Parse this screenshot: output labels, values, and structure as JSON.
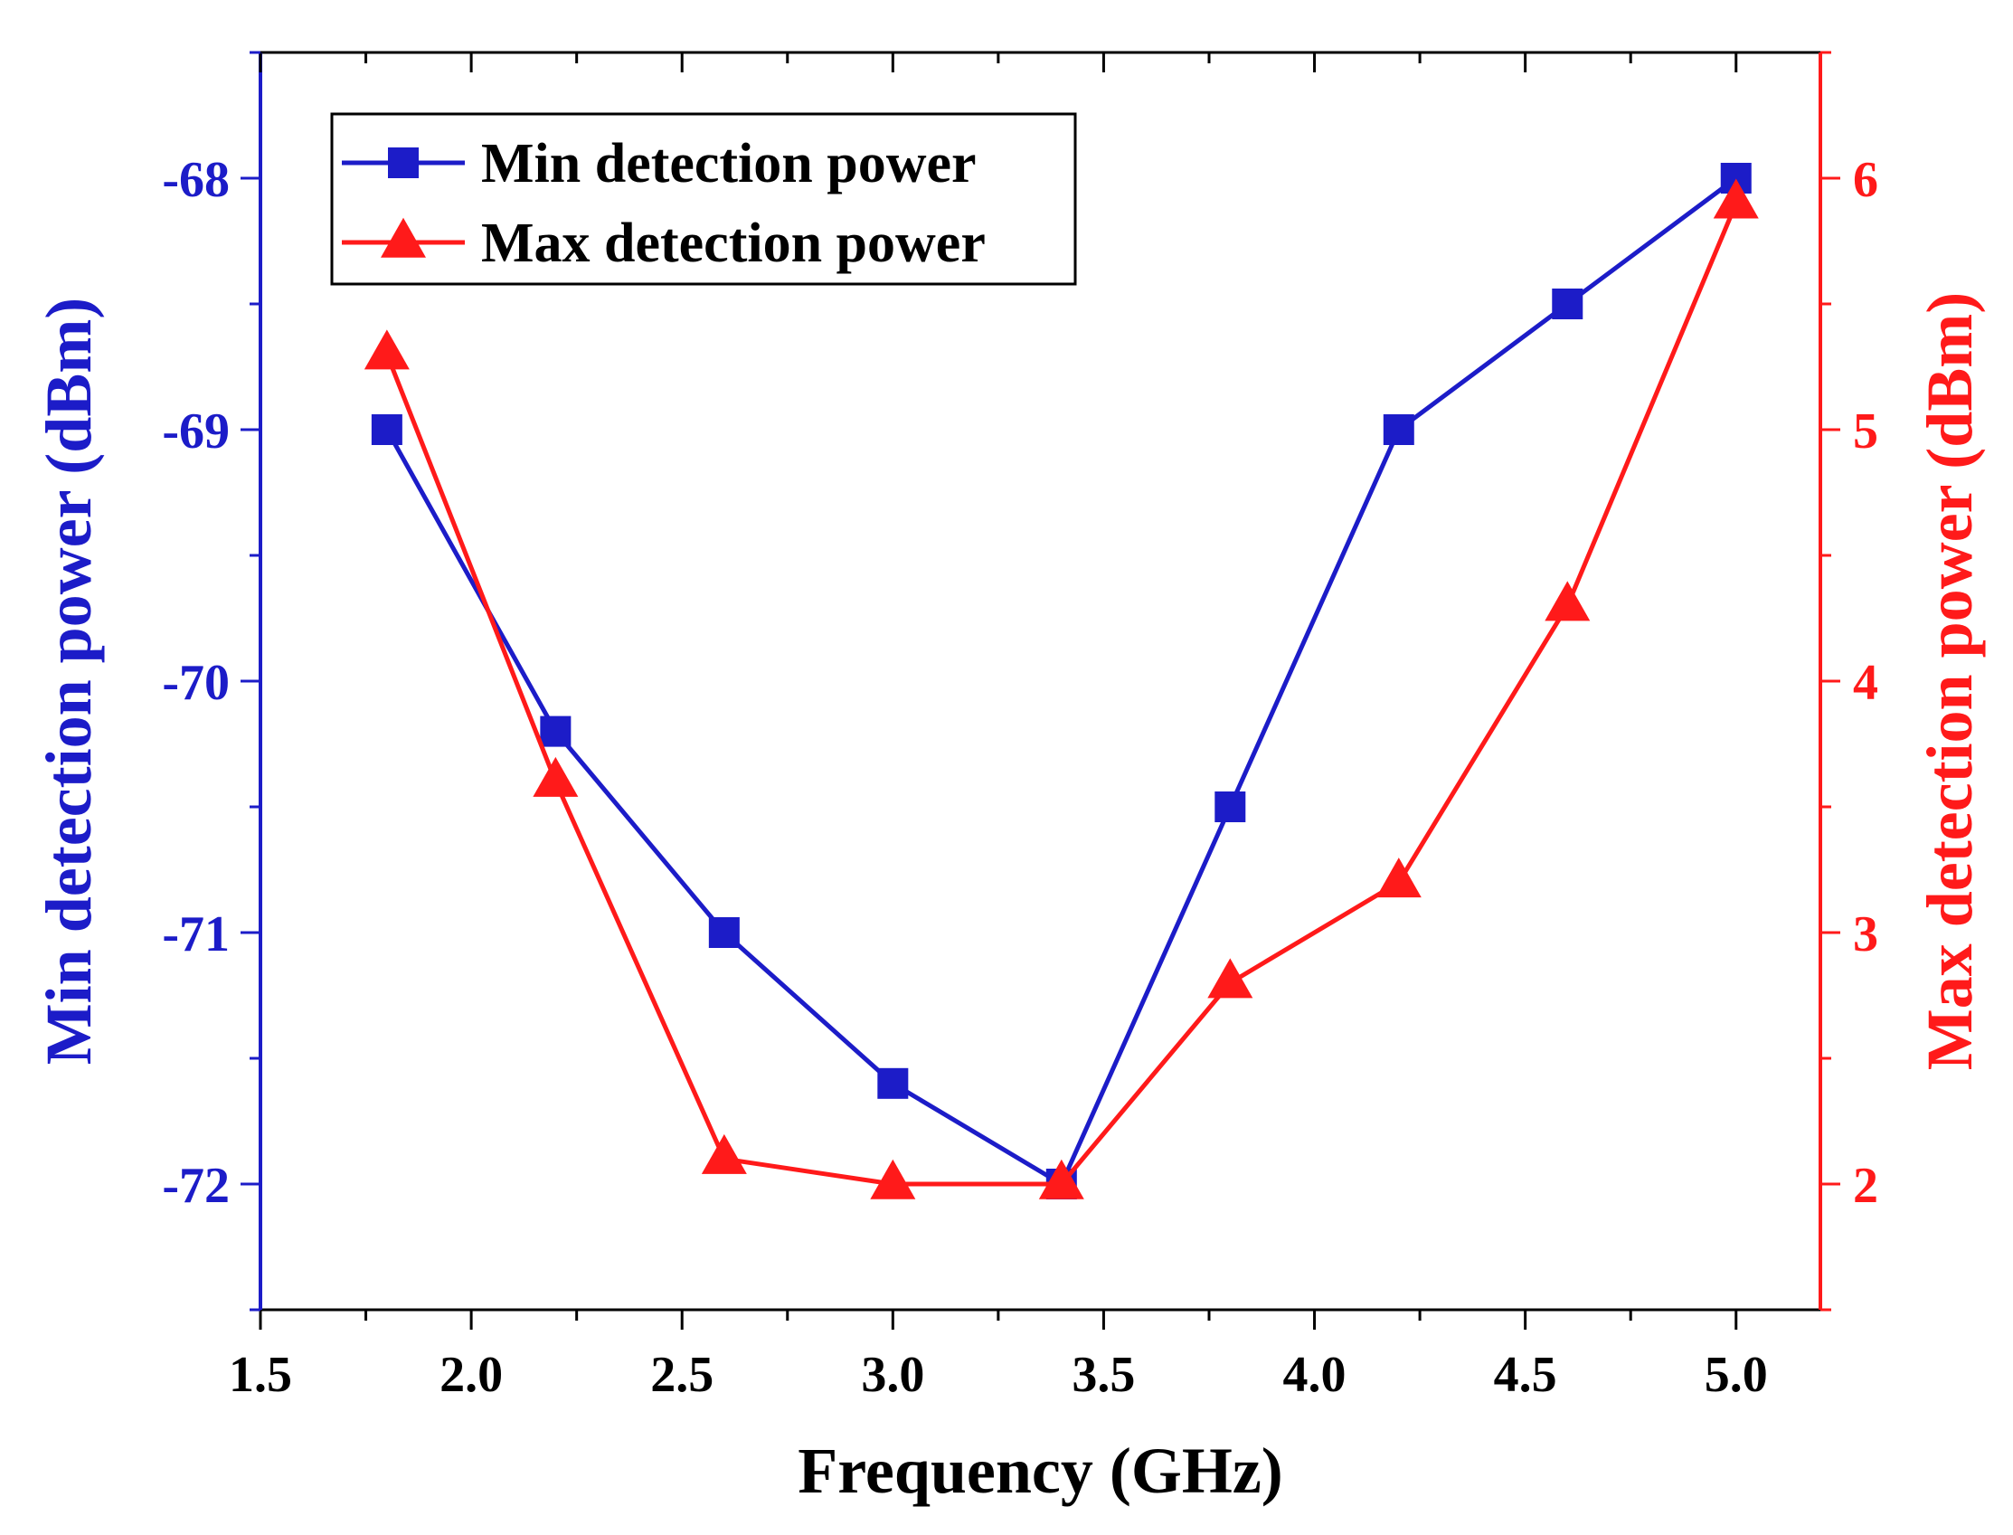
{
  "chart_data": {
    "type": "line",
    "title": "",
    "xlabel": "Frequency (GHz)",
    "ylabel_left": "Min detection power (dBm)",
    "ylabel_right": "Max detection power (dBm)",
    "xlim": [
      1.5,
      5.2
    ],
    "ylim_left": [
      -72.5,
      -67.5
    ],
    "ylim_right": [
      1.5,
      6.5
    ],
    "x_ticks": [
      1.5,
      2.0,
      2.5,
      3.0,
      3.5,
      4.0,
      4.5,
      5.0
    ],
    "x_tick_labels": [
      "1.5",
      "2.0",
      "2.5",
      "3.0",
      "3.5",
      "4.0",
      "4.5",
      "5.0"
    ],
    "y_left_ticks": [
      -68,
      -69,
      -70,
      -71,
      -72
    ],
    "y_left_tick_labels": [
      "-68",
      "-69",
      "-70",
      "-71",
      "-72"
    ],
    "y_right_ticks": [
      6,
      5,
      4,
      3,
      2
    ],
    "y_right_tick_labels": [
      "6",
      "5",
      "4",
      "3",
      "2"
    ],
    "x": [
      1.8,
      2.2,
      2.6,
      3.0,
      3.4,
      3.8,
      4.2,
      4.6,
      5.0
    ],
    "series": [
      {
        "name": "Min detection power",
        "axis": "left",
        "marker": "square",
        "color": "#1c1cc8",
        "values": [
          -69.0,
          -70.2,
          -71.0,
          -71.6,
          -72.0,
          -70.5,
          -69.0,
          -68.5,
          -68.0
        ]
      },
      {
        "name": "Max detection power",
        "axis": "right",
        "marker": "triangle",
        "color": "#ff1a1a",
        "values": [
          5.3,
          3.6,
          2.1,
          2.0,
          2.0,
          2.8,
          3.2,
          4.3,
          5.9
        ]
      }
    ],
    "legend": {
      "position": "top-left",
      "items": [
        "Min detection power",
        "Max detection power"
      ]
    },
    "colors": {
      "left_axis": "#1c1cc8",
      "right_axis": "#ff1a1a",
      "bottom_axis": "#000000"
    },
    "grid": false
  }
}
